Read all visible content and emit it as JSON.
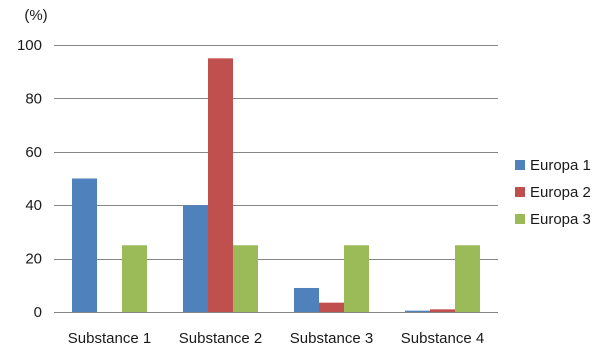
{
  "chart_data": {
    "type": "bar",
    "title": "",
    "xlabel": "",
    "ylabel": "(%)",
    "categories": [
      "Substance 1",
      "Substance 2",
      "Substance 3",
      "Substance 4"
    ],
    "series": [
      {
        "name": "Europa 1",
        "values": [
          50,
          40,
          9,
          0.5
        ],
        "color": "#4f81bd"
      },
      {
        "name": "Europa 2",
        "values": [
          0,
          95,
          3.5,
          1
        ],
        "color": "#c0504d"
      },
      {
        "name": "Europa 3",
        "values": [
          25,
          25,
          25,
          25
        ],
        "color": "#9bbb59"
      }
    ],
    "ylim": [
      0,
      100
    ],
    "yticks": [
      0,
      20,
      40,
      60,
      80,
      100
    ],
    "grid": true,
    "legend_position": "right",
    "gridline_color": "#868686"
  }
}
